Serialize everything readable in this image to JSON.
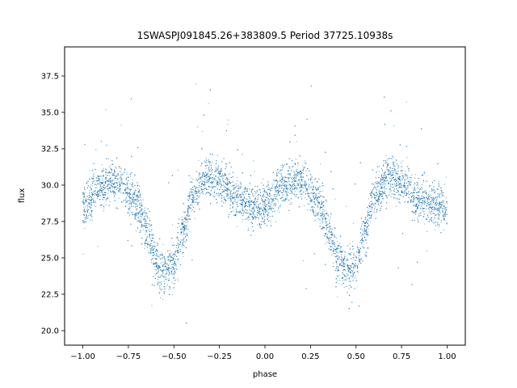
{
  "chart_data": {
    "type": "scatter",
    "title": "1SWASPJ091845.26+383809.5 Period 37725.10938s",
    "xlabel": "phase",
    "ylabel": "flux",
    "xlim": [
      -1.1,
      1.1
    ],
    "ylim": [
      19.0,
      39.5
    ],
    "xticks": [
      -1.0,
      -0.75,
      -0.5,
      -0.25,
      0.0,
      0.25,
      0.5,
      0.75,
      1.0
    ],
    "xtick_labels": [
      "−1.00",
      "−0.75",
      "−0.50",
      "−0.25",
      "0.00",
      "0.25",
      "0.50",
      "0.75",
      "1.00"
    ],
    "yticks": [
      20.0,
      22.5,
      25.0,
      27.5,
      30.0,
      32.5,
      35.0,
      37.5
    ],
    "ytick_labels": [
      "20.0",
      "22.5",
      "25.0",
      "27.5",
      "30.0",
      "32.5",
      "35.0",
      "37.5"
    ],
    "grid": false,
    "marker_color": "#1f77b4",
    "series": [
      {
        "phase_range": [
          -1.0,
          1.0
        ],
        "light_curve_profile": [
          {
            "phase": 0.0,
            "flux": 28.6
          },
          {
            "phase": 0.1,
            "flux": 30.0
          },
          {
            "phase": 0.2,
            "flux": 30.2
          },
          {
            "phase": 0.3,
            "flux": 28.8
          },
          {
            "phase": 0.35,
            "flux": 27.0
          },
          {
            "phase": 0.4,
            "flux": 25.0
          },
          {
            "phase": 0.45,
            "flux": 24.2
          },
          {
            "phase": 0.5,
            "flux": 24.6
          },
          {
            "phase": 0.55,
            "flux": 26.8
          },
          {
            "phase": 0.6,
            "flux": 29.2
          },
          {
            "phase": 0.67,
            "flux": 30.5
          },
          {
            "phase": 0.75,
            "flux": 30.2
          },
          {
            "phase": 0.85,
            "flux": 29.0
          },
          {
            "phase": 0.95,
            "flux": 28.4
          },
          {
            "phase": 1.0,
            "flux": 28.6
          }
        ],
        "scatter_sigma": 0.7,
        "point_count": 9000
      }
    ]
  }
}
